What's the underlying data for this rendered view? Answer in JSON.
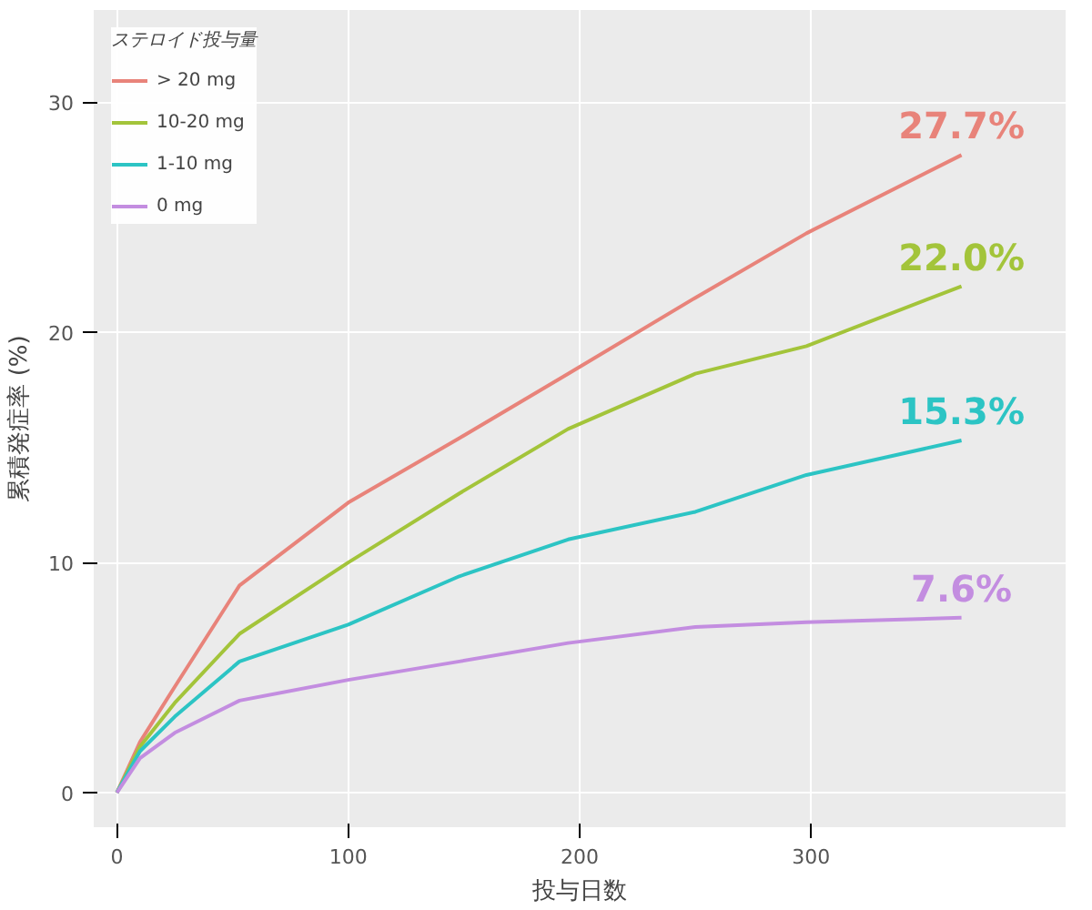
{
  "chart_data": {
    "type": "line",
    "xlabel": "投与日数",
    "ylabel": "累積発症率 (%)",
    "legend_title": "ステロイド投与量",
    "xlim": [
      -10,
      410
    ],
    "ylim": [
      -1.5,
      34
    ],
    "xticks": [
      0,
      100,
      200,
      300
    ],
    "yticks": [
      0,
      10,
      20,
      30
    ],
    "grid": true,
    "legend": "top left",
    "x": [
      0,
      10,
      25,
      53,
      100,
      148,
      195,
      250,
      298,
      365
    ],
    "series": [
      {
        "name": "> 20 mg",
        "color": "#e8837a",
        "values": [
          0,
          2.2,
          4.6,
          9.0,
          12.6,
          15.4,
          18.2,
          21.5,
          24.3,
          27.7
        ]
      },
      {
        "name": "10-20 mg",
        "color": "#a3c43a",
        "values": [
          0,
          2.0,
          3.9,
          6.9,
          10.0,
          13.0,
          15.8,
          18.2,
          19.4,
          22.0
        ]
      },
      {
        "name": "1-10 mg",
        "color": "#2cc4c4",
        "values": [
          0,
          1.8,
          3.3,
          5.7,
          7.3,
          9.4,
          11.0,
          12.2,
          13.8,
          15.3
        ]
      },
      {
        "name": "0 mg",
        "color": "#c38de0",
        "values": [
          0,
          1.5,
          2.6,
          4.0,
          4.9,
          5.7,
          6.5,
          7.2,
          7.4,
          7.6
        ]
      }
    ],
    "annotations": [
      "27.7%",
      "22.0%",
      "15.3%",
      "7.6%"
    ]
  }
}
